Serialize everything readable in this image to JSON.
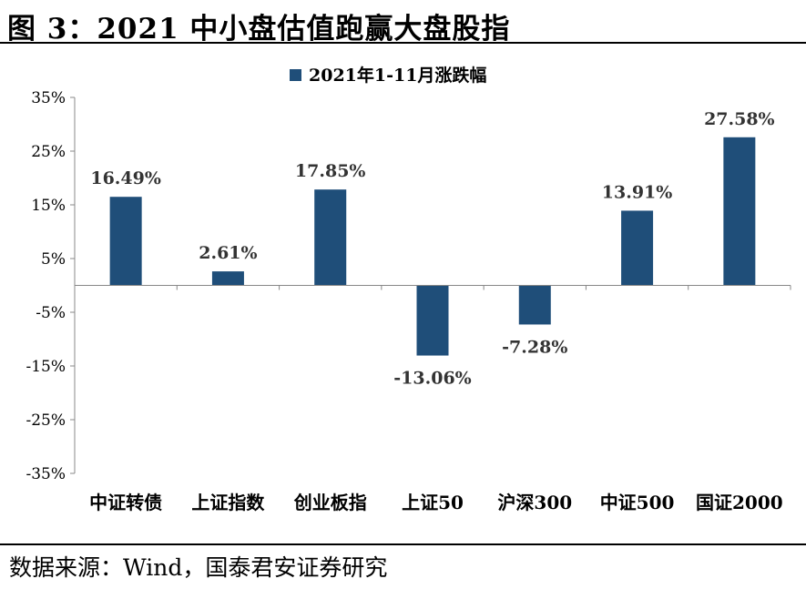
{
  "header": {
    "title": "图 3：2021 中小盘估值跑赢大盘股指"
  },
  "footer": {
    "source": "数据来源：Wind，国泰君安证券研究"
  },
  "chart_data": {
    "type": "bar",
    "title": "",
    "legend": {
      "entries": [
        "2021年1-11月涨跌幅"
      ],
      "placement": "top-center"
    },
    "categories": [
      "中证转债",
      "上证指数",
      "创业板指",
      "上证50",
      "沪深300",
      "中证500",
      "国证2000"
    ],
    "series": [
      {
        "name": "2021年1-11月涨跌幅",
        "values": [
          16.49,
          2.61,
          17.85,
          -13.06,
          -7.28,
          13.91,
          27.58
        ],
        "color": "#1f4e79"
      }
    ],
    "data_labels": [
      "16.49%",
      "2.61%",
      "17.85%",
      "-13.06%",
      "-7.28%",
      "13.91%",
      "27.58%"
    ],
    "y_ticks": [
      35,
      25,
      15,
      5,
      -5,
      -15,
      -25,
      -35
    ],
    "y_tick_labels": [
      "35%",
      "25%",
      "15%",
      "5%",
      "-5%",
      "-15%",
      "-25%",
      "-35%"
    ],
    "ylim": [
      -35,
      35
    ],
    "xlabel": "",
    "ylabel": "",
    "grid": false
  }
}
